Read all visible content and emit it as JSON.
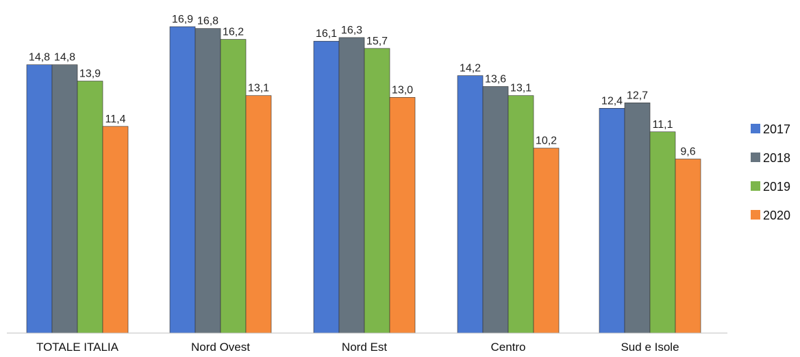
{
  "chart_data": {
    "type": "bar",
    "categories": [
      "TOTALE ITALIA",
      "Nord Ovest",
      "Nord Est",
      "Centro",
      "Sud e Isole"
    ],
    "series": [
      {
        "name": "2017",
        "color": "#4a78d1",
        "values": [
          14.8,
          16.9,
          16.1,
          14.2,
          12.4
        ],
        "labels": [
          "14,8",
          "16,9",
          "16,1",
          "14,2",
          "12,4"
        ]
      },
      {
        "name": "2018",
        "color": "#66747f",
        "values": [
          14.8,
          16.8,
          16.3,
          13.6,
          12.7
        ],
        "labels": [
          "14,8",
          "16,8",
          "16,3",
          "13,6",
          "12,7"
        ]
      },
      {
        "name": "2019",
        "color": "#7db64b",
        "values": [
          13.9,
          16.2,
          15.7,
          13.1,
          11.1
        ],
        "labels": [
          "13,9",
          "16,2",
          "15,7",
          "13,1",
          "11,1"
        ]
      },
      {
        "name": "2020",
        "color": "#f5893a",
        "values": [
          11.4,
          13.1,
          13.0,
          10.2,
          9.6
        ],
        "labels": [
          "11,4",
          "13,1",
          "13,0",
          "10,2",
          "9,6"
        ]
      }
    ],
    "title": "",
    "xlabel": "",
    "ylabel": "",
    "ylim": [
      0,
      16.9
    ],
    "grid": false,
    "legend": "right"
  }
}
